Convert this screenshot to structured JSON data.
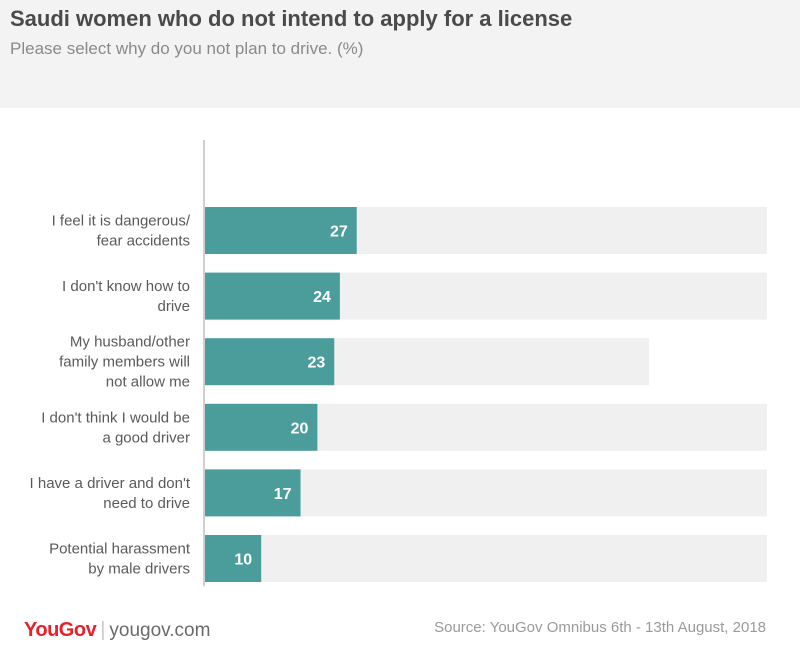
{
  "header": {
    "title": "Saudi women who do not intend to apply for a license",
    "subtitle": "Please select why do you not plan to drive. (%)"
  },
  "footer": {
    "brand": "YouGov",
    "url": "yougov.com",
    "source": "Source: YouGov Omnibus 6th - 13th August, 2018"
  },
  "colors": {
    "bar": "#4a9d9b",
    "track": "#f0f0f0",
    "axis": "#cfcfcf",
    "header_bg": "#f3f3f3"
  },
  "chart_data": {
    "type": "bar",
    "orientation": "horizontal",
    "title": "Saudi women who do not intend to apply for a license",
    "subtitle": "Please select why do you not plan to drive. (%)",
    "categories": [
      [
        "I feel it is dangerous/",
        "fear  accidents"
      ],
      [
        "I don't know how to",
        "drive"
      ],
      [
        "My husband/other",
        "family members will",
        "not allow me"
      ],
      [
        "I don't think I would be",
        "a good driver"
      ],
      [
        "I have a driver and don't",
        "need to drive"
      ],
      [
        "Potential harassment",
        "by male drivers"
      ]
    ],
    "values": [
      27,
      24,
      23,
      20,
      17,
      10
    ],
    "data_labels": [
      "27",
      "24",
      "23",
      "20",
      "17",
      "10"
    ],
    "xlim": [
      0,
      100
    ],
    "grid": false,
    "legend": "none"
  }
}
